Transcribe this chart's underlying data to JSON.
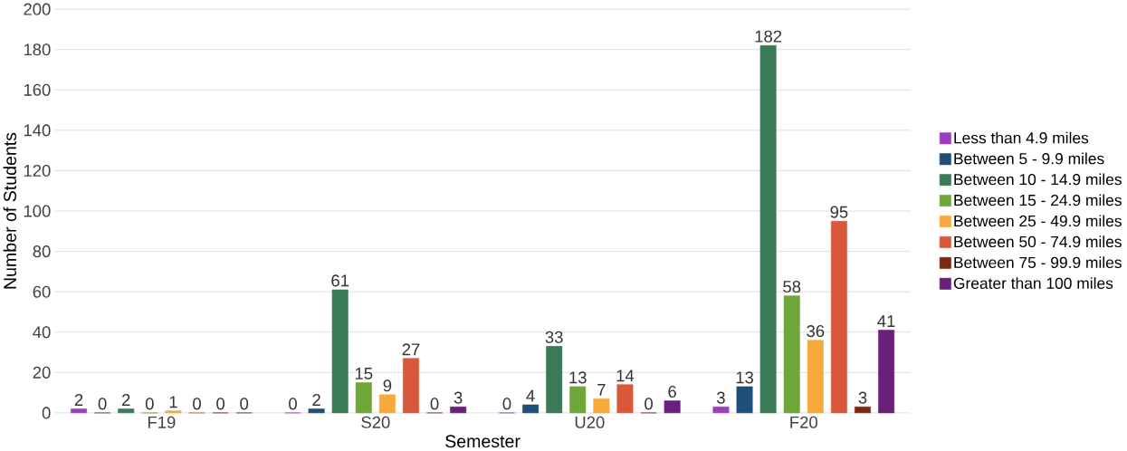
{
  "chart_data": {
    "type": "bar",
    "xlabel": "Semester",
    "ylabel": "Number of Students",
    "categories": [
      "F19",
      "S20",
      "U20",
      "F20"
    ],
    "series": [
      {
        "name": "Less than 4.9 miles",
        "color": "#9b3fbf",
        "values": [
          2,
          0,
          0,
          3
        ]
      },
      {
        "name": "Between 5 - 9.9 miles",
        "color": "#1f4e79",
        "values": [
          0,
          2,
          4,
          13
        ]
      },
      {
        "name": "Between 10 - 14.9 miles",
        "color": "#3b7a57",
        "values": [
          2,
          61,
          33,
          182
        ]
      },
      {
        "name": "Between 15 - 24.9 miles",
        "color": "#6ea63a",
        "values": [
          0,
          15,
          13,
          58
        ]
      },
      {
        "name": "Between 25 - 49.9 miles",
        "color": "#f8a93c",
        "values": [
          1,
          9,
          7,
          36
        ]
      },
      {
        "name": "Between 50 - 74.9 miles",
        "color": "#d9573b",
        "values": [
          0,
          27,
          14,
          95
        ]
      },
      {
        "name": "Between 75 - 99.9 miles",
        "color": "#7a2915",
        "values": [
          0,
          0,
          0,
          3
        ]
      },
      {
        "name": "Greater than 100 miles",
        "color": "#6a1f7a",
        "values": [
          0,
          3,
          6,
          41
        ]
      }
    ],
    "ylim": [
      0,
      200
    ],
    "yticks": [
      0,
      20,
      40,
      60,
      80,
      100,
      120,
      140,
      160,
      180,
      200
    ],
    "grid": "y",
    "legend": "right",
    "data_labels": true
  }
}
